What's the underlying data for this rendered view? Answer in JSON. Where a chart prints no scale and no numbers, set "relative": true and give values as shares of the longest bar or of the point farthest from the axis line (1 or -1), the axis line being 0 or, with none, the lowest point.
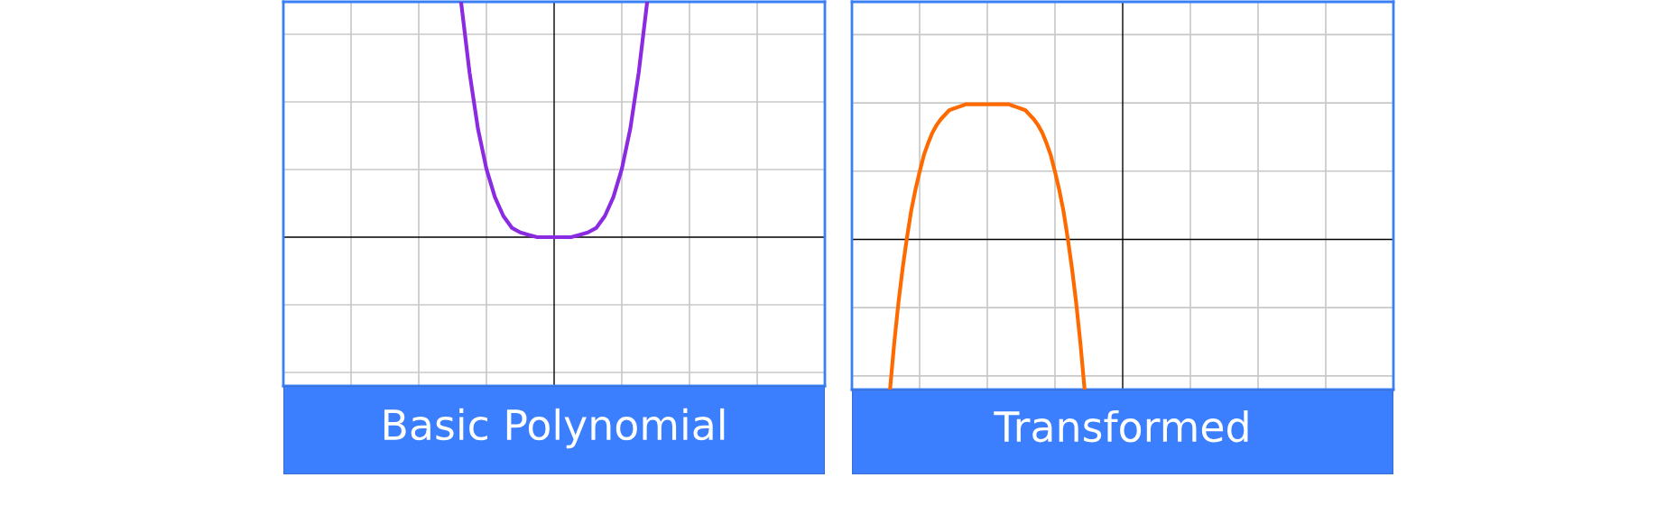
{
  "chart_data": [
    {
      "type": "line",
      "title": "Basic Polynomial",
      "relative": true,
      "grid": true,
      "tick_labels": false,
      "categories": [
        null,
        null,
        null,
        null,
        null,
        null,
        null,
        null,
        null,
        null,
        null,
        null,
        null,
        null,
        null,
        null,
        null,
        null,
        null,
        null,
        null,
        null,
        null,
        null,
        null,
        null,
        null,
        null,
        null,
        null,
        null,
        null,
        null,
        null,
        null,
        null,
        null,
        null,
        null,
        null,
        null,
        null,
        null,
        null,
        null,
        null,
        null,
        null,
        null,
        null,
        null,
        null,
        null,
        null,
        null,
        null,
        null,
        null,
        null,
        null,
        null,
        null,
        null,
        null,
        null
      ],
      "series": [
        {
          "color": "#8a2be2",
          "values": [
            null,
            null,
            null,
            null,
            null,
            null,
            null,
            null,
            null,
            null,
            null,
            null,
            null,
            null,
            null,
            null,
            null,
            null,
            null,
            null,
            null,
            1,
            0.7,
            0.46,
            0.29,
            0.17,
            0.09,
            0.04,
            0.02,
            0.01,
            0,
            0,
            0,
            0,
            0,
            0.01,
            0.02,
            0.04,
            0.09,
            0.17,
            0.29,
            0.46,
            0.7,
            1,
            null,
            null,
            null,
            null,
            null,
            null,
            null,
            null,
            null,
            null,
            null,
            null,
            null,
            null,
            null,
            null,
            null,
            null,
            null,
            null,
            null
          ]
        }
      ]
    },
    {
      "type": "line",
      "title": "Transformed",
      "relative": true,
      "grid": true,
      "tick_labels": false,
      "categories": [
        null,
        null,
        null,
        null,
        null,
        null,
        null,
        null,
        null,
        null,
        null,
        null,
        null,
        null,
        null,
        null,
        null,
        null,
        null,
        null,
        null,
        null,
        null,
        null,
        null,
        null,
        null,
        null,
        null,
        null,
        null,
        null,
        null,
        null,
        null,
        null,
        null,
        null,
        null,
        null,
        null,
        null,
        null,
        null,
        null,
        null,
        null,
        null,
        null,
        null,
        null,
        null,
        null,
        null,
        null,
        null,
        null,
        null,
        null,
        null,
        null,
        null,
        null,
        null,
        null,
        null,
        null,
        null,
        null,
        null,
        null,
        null,
        null,
        null,
        null,
        null,
        null,
        null,
        null,
        null,
        null,
        null,
        null,
        null,
        null,
        null,
        null,
        null,
        null,
        null,
        null,
        null,
        null,
        null,
        null,
        null,
        null,
        null,
        null,
        null,
        null,
        null,
        null,
        null,
        null,
        null,
        null,
        null,
        null,
        null,
        null,
        null,
        null,
        null,
        null,
        null,
        null,
        null,
        null,
        null,
        null,
        null,
        null,
        null,
        null,
        null,
        null,
        null,
        null
      ],
      "series": [
        {
          "color": "#ff6a00",
          "values": [
            null,
            null,
            null,
            null,
            null,
            null,
            null,
            null,
            null,
            -1.0,
            -0.69,
            -0.42,
            -0.19,
            0.01,
            0.19,
            0.33,
            0.45,
            0.56,
            0.64,
            0.71,
            0.76,
            0.8,
            0.83,
            0.86,
            0.87,
            0.88,
            0.89,
            0.9,
            0.9,
            0.9,
            0.9,
            0.9,
            0.9,
            0.9,
            0.9,
            0.9,
            0.9,
            0.9,
            0.89,
            0.88,
            0.87,
            0.86,
            0.83,
            0.8,
            0.76,
            0.71,
            0.64,
            0.56,
            0.45,
            0.33,
            0.19,
            0.01,
            -0.19,
            -0.42,
            -0.69,
            -1.0,
            null,
            null,
            null,
            null,
            null,
            null,
            null,
            null,
            null,
            null,
            null,
            null,
            null,
            null,
            null,
            null,
            null,
            null,
            null,
            null,
            null,
            null,
            null,
            null,
            null,
            null,
            null,
            null,
            null,
            null,
            null,
            null,
            null,
            null,
            null,
            null,
            null,
            null,
            null,
            null,
            null,
            null,
            null,
            null,
            null,
            null,
            null,
            null,
            null,
            null,
            null,
            null,
            null,
            null,
            null,
            null,
            null,
            null,
            null,
            null,
            null,
            null,
            null,
            null,
            null,
            null,
            null,
            null,
            null,
            null,
            null,
            null,
            null
          ]
        }
      ]
    }
  ]
}
